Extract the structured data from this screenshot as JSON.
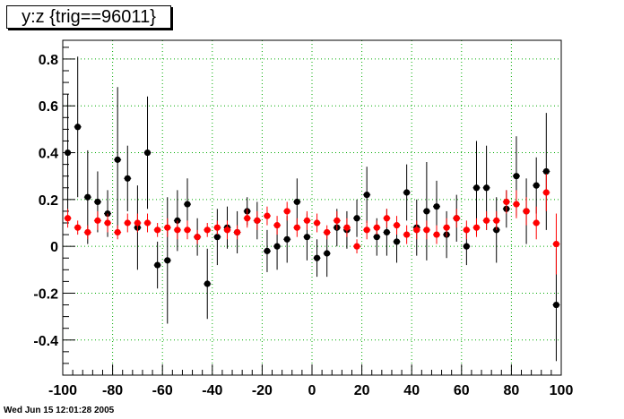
{
  "title": "y:z {trig==96011}",
  "timestamp": "Wed Jun 15 12:01:28 2005",
  "chart_data": {
    "type": "scatter",
    "title": "y:z {trig==96011}",
    "xlabel": "",
    "ylabel": "",
    "xlim": [
      -100,
      100
    ],
    "ylim": [
      -0.55,
      0.88
    ],
    "grid": true,
    "x_ticks": [
      -100,
      -80,
      -60,
      -40,
      -20,
      0,
      20,
      40,
      60,
      80,
      100
    ],
    "x_tick_labels": [
      "-100",
      "-80",
      "-60",
      "-40",
      "-20",
      "0",
      "20",
      "40",
      "60",
      "80",
      "100"
    ],
    "y_ticks": [
      -0.4,
      -0.2,
      0,
      0.2,
      0.4,
      0.6,
      0.8
    ],
    "y_tick_labels": [
      "-0.4",
      "-0.2",
      "0",
      "0.2",
      "0.4",
      "0.6",
      "0.8"
    ],
    "colors": {
      "black_series": "#000000",
      "red_series": "#ff0000",
      "grid": "#00aa00"
    },
    "series": [
      {
        "color": "#000000",
        "x": [
          -98,
          -94,
          -90,
          -86,
          -82,
          -78,
          -74,
          -70,
          -66,
          -62,
          -58,
          -54,
          -50,
          -46,
          -42,
          -38,
          -34,
          -30,
          -26,
          -22,
          -18,
          -14,
          -10,
          -6,
          -2,
          2,
          6,
          10,
          14,
          18,
          22,
          26,
          30,
          34,
          38,
          42,
          46,
          50,
          54,
          58,
          62,
          66,
          70,
          74,
          78,
          82,
          86,
          90,
          94,
          98
        ],
        "y": [
          0.4,
          0.51,
          0.21,
          0.19,
          0.14,
          0.37,
          0.29,
          0.08,
          0.4,
          -0.08,
          -0.06,
          0.11,
          0.18,
          0.04,
          -0.16,
          0.04,
          0.08,
          0.06,
          0.15,
          0.11,
          -0.02,
          0.0,
          0.03,
          0.19,
          0.04,
          -0.05,
          -0.03,
          0.08,
          0.07,
          0.12,
          0.22,
          0.04,
          0.06,
          0.02,
          0.23,
          0.08,
          0.15,
          0.17,
          0.05,
          0.12,
          0.0,
          0.25,
          0.25,
          0.07,
          0.16,
          0.3,
          0.15,
          0.26,
          0.32,
          -0.25
        ],
        "yerr": [
          0.25,
          0.3,
          0.2,
          0.13,
          0.1,
          0.31,
          0.14,
          0.18,
          0.24,
          0.1,
          0.27,
          0.13,
          0.11,
          0.08,
          0.15,
          0.12,
          0.09,
          0.09,
          0.06,
          0.08,
          0.09,
          0.1,
          0.1,
          0.1,
          0.1,
          0.08,
          0.1,
          0.08,
          0.08,
          0.08,
          0.12,
          0.08,
          0.1,
          0.09,
          0.12,
          0.12,
          0.21,
          0.11,
          0.1,
          0.1,
          0.08,
          0.2,
          0.18,
          0.14,
          0.08,
          0.17,
          0.14,
          0.12,
          0.25,
          0.24
        ]
      },
      {
        "color": "#ff0000",
        "x": [
          -98,
          -94,
          -90,
          -86,
          -82,
          -78,
          -74,
          -70,
          -66,
          -62,
          -58,
          -54,
          -50,
          -46,
          -42,
          -38,
          -34,
          -30,
          -26,
          -22,
          -18,
          -14,
          -10,
          -6,
          -2,
          2,
          6,
          10,
          14,
          18,
          22,
          26,
          30,
          34,
          38,
          42,
          46,
          50,
          54,
          58,
          62,
          66,
          70,
          74,
          78,
          82,
          86,
          90,
          94,
          98
        ],
        "y": [
          0.12,
          0.08,
          0.06,
          0.11,
          0.1,
          0.06,
          0.1,
          0.1,
          0.1,
          0.07,
          0.08,
          0.07,
          0.07,
          0.04,
          0.07,
          0.08,
          0.07,
          0.06,
          0.12,
          0.11,
          0.13,
          0.09,
          0.15,
          0.08,
          0.11,
          0.1,
          0.06,
          0.11,
          0.08,
          0.0,
          0.07,
          0.08,
          0.12,
          0.09,
          0.05,
          0.07,
          0.07,
          0.05,
          0.08,
          0.12,
          0.07,
          0.08,
          0.11,
          0.11,
          0.19,
          0.18,
          0.15,
          0.1,
          0.23,
          0.01
        ],
        "yerr": [
          0.04,
          0.03,
          0.03,
          0.04,
          0.04,
          0.03,
          0.04,
          0.04,
          0.04,
          0.03,
          0.04,
          0.04,
          0.04,
          0.03,
          0.03,
          0.03,
          0.04,
          0.03,
          0.04,
          0.04,
          0.04,
          0.04,
          0.04,
          0.04,
          0.04,
          0.04,
          0.03,
          0.04,
          0.04,
          0.03,
          0.04,
          0.03,
          0.04,
          0.04,
          0.04,
          0.04,
          0.04,
          0.04,
          0.04,
          0.04,
          0.04,
          0.04,
          0.04,
          0.04,
          0.05,
          0.06,
          0.06,
          0.07,
          0.08,
          0.13
        ]
      }
    ]
  }
}
